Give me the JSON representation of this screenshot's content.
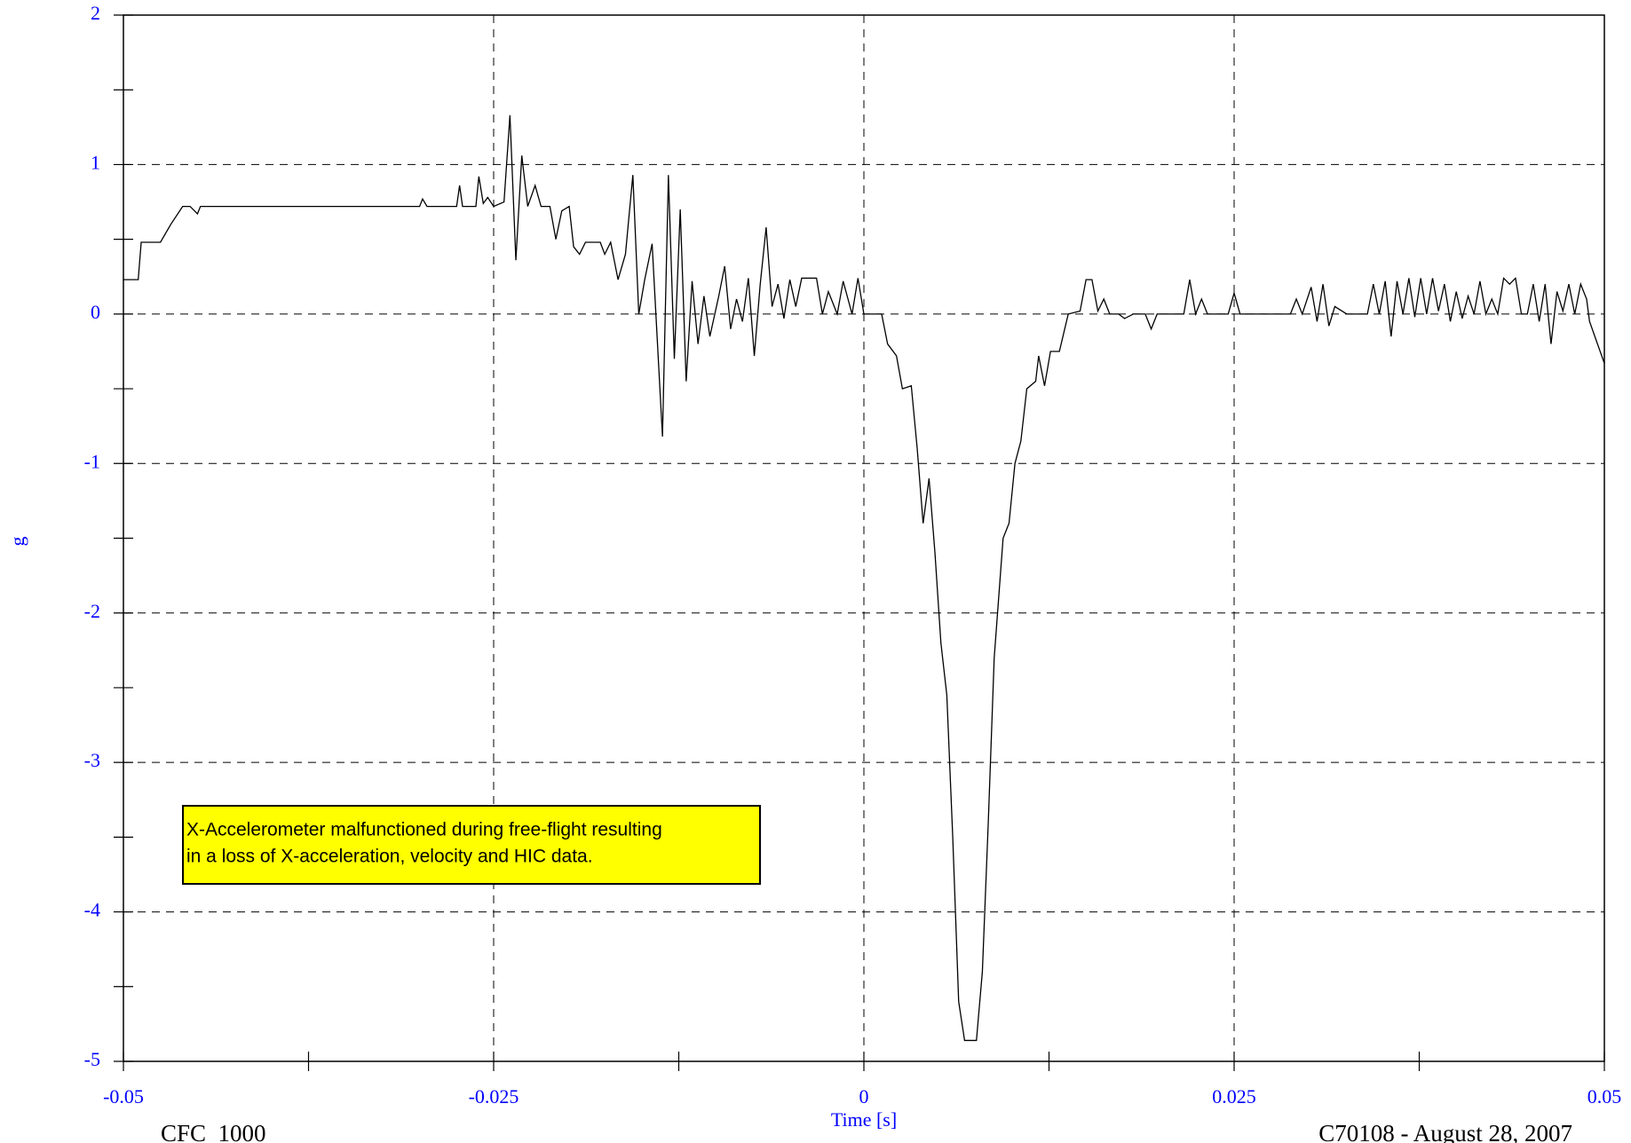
{
  "chart_data": {
    "type": "line",
    "y_label": "g",
    "x_label": "Time [s]",
    "footer_left": "CFC_1000",
    "footer_right": "C70108 - August 28, 2007",
    "annotation": [
      "X-Accelerometer malfunctioned during free-flight resulting",
      "in a loss of X-acceleration, velocity and HIC data."
    ],
    "xlim": [
      -0.05,
      0.05
    ],
    "ylim": [
      -5,
      2
    ],
    "xticks": [
      -0.05,
      -0.025,
      0,
      0.025,
      0.05
    ],
    "yticks": [
      2,
      1,
      0,
      -1,
      -2,
      -3,
      -4,
      -5
    ],
    "xticks_minor": [
      -0.0375,
      -0.0125,
      0.0125,
      0.0375
    ],
    "yticks_minor": [
      1.5,
      0.5,
      -0.5,
      -1.5,
      -2.5,
      -3.5,
      -4.5
    ],
    "grid": true,
    "series": [
      {
        "color": "#000000",
        "x": [
          -0.05,
          -0.049,
          -0.0488,
          -0.0475,
          -0.0468,
          -0.046,
          -0.0455,
          -0.045,
          -0.0448,
          -0.03,
          -0.0298,
          -0.0295,
          -0.0275,
          -0.0273,
          -0.0271,
          -0.0262,
          -0.026,
          -0.0257,
          -0.0254,
          -0.025,
          -0.0243,
          -0.0239,
          -0.0235,
          -0.0231,
          -0.0227,
          -0.0222,
          -0.0218,
          -0.0212,
          -0.0208,
          -0.0204,
          -0.0199,
          -0.0196,
          -0.0192,
          -0.0188,
          -0.0178,
          -0.0175,
          -0.0171,
          -0.0166,
          -0.0161,
          -0.0156,
          -0.0152,
          -0.0148,
          -0.0143,
          -0.0136,
          -0.0132,
          -0.0128,
          -0.0124,
          -0.012,
          -0.0116,
          -0.0112,
          -0.0108,
          -0.0104,
          -0.0098,
          -0.0094,
          -0.009,
          -0.0086,
          -0.0082,
          -0.0078,
          -0.0074,
          -0.007,
          -0.0066,
          -0.0062,
          -0.0058,
          -0.0054,
          -0.005,
          -0.0046,
          -0.0042,
          -0.0032,
          -0.0028,
          -0.0024,
          -0.0018,
          -0.0014,
          -0.0008,
          -0.0004,
          0,
          0.0012,
          0.0016,
          0.0022,
          0.0026,
          0.0032,
          0.0036,
          0.004,
          0.0044,
          0.0048,
          0.0052,
          0.0056,
          0.006,
          0.0064,
          0.0068,
          0.0076,
          0.008,
          0.0084,
          0.0088,
          0.0094,
          0.0098,
          0.0102,
          0.0106,
          0.011,
          0.0116,
          0.0118,
          0.0122,
          0.0126,
          0.0132,
          0.0138,
          0.0146,
          0.015,
          0.0154,
          0.0158,
          0.0162,
          0.0166,
          0.0172,
          0.0176,
          0.0182,
          0.019,
          0.0194,
          0.0198,
          0.0216,
          0.022,
          0.0224,
          0.0228,
          0.0232,
          0.0246,
          0.025,
          0.0254,
          0.0288,
          0.0292,
          0.0296,
          0.0302,
          0.0306,
          0.031,
          0.0314,
          0.0318,
          0.0326,
          0.034,
          0.0344,
          0.0348,
          0.0352,
          0.0356,
          0.036,
          0.0364,
          0.0368,
          0.0372,
          0.0376,
          0.038,
          0.0384,
          0.0388,
          0.0392,
          0.0396,
          0.04,
          0.0404,
          0.0408,
          0.0412,
          0.0416,
          0.042,
          0.0424,
          0.0428,
          0.0432,
          0.0436,
          0.044,
          0.0444,
          0.0448,
          0.0452,
          0.0456,
          0.046,
          0.0464,
          0.0468,
          0.0472,
          0.0476,
          0.048,
          0.0484,
          0.0488,
          0.049,
          0.05
        ],
        "values": [
          0.23,
          0.23,
          0.48,
          0.48,
          0.6,
          0.72,
          0.72,
          0.67,
          0.72,
          0.72,
          0.77,
          0.72,
          0.72,
          0.86,
          0.72,
          0.72,
          0.92,
          0.74,
          0.78,
          0.72,
          0.75,
          1.33,
          0.36,
          1.06,
          0.72,
          0.86,
          0.72,
          0.72,
          0.5,
          0.69,
          0.72,
          0.45,
          0.4,
          0.48,
          0.48,
          0.4,
          0.48,
          0.23,
          0.4,
          0.93,
          0.0,
          0.23,
          0.47,
          -0.82,
          0.93,
          -0.3,
          0.7,
          -0.45,
          0.22,
          -0.2,
          0.12,
          -0.15,
          0.12,
          0.32,
          -0.1,
          0.1,
          -0.05,
          0.24,
          -0.28,
          0.2,
          0.58,
          0.05,
          0.2,
          -0.03,
          0.23,
          0.05,
          0.24,
          0.24,
          0.0,
          0.15,
          0.0,
          0.22,
          0.0,
          0.24,
          0,
          0,
          -0.2,
          -0.28,
          -0.5,
          -0.48,
          -0.9,
          -1.4,
          -1.1,
          -1.6,
          -2.2,
          -2.55,
          -3.5,
          -4.6,
          -4.86,
          -4.86,
          -4.4,
          -3.4,
          -2.3,
          -1.5,
          -1.4,
          -1.0,
          -0.85,
          -0.5,
          -0.45,
          -0.28,
          -0.48,
          -0.25,
          -0.25,
          0,
          0.02,
          0.23,
          0.23,
          0.02,
          0.1,
          0,
          0,
          -0.03,
          0,
          0,
          -0.1,
          0,
          0,
          0.23,
          0,
          0.1,
          0,
          0,
          0.14,
          0,
          0,
          0.1,
          0.0,
          0.18,
          -0.05,
          0.2,
          -0.08,
          0.05,
          0,
          0,
          0.2,
          0,
          0.22,
          -0.15,
          0.22,
          0,
          0.24,
          -0.02,
          0.24,
          0.0,
          0.24,
          0.02,
          0.2,
          -0.05,
          0.15,
          -0.03,
          0.12,
          0,
          0.22,
          0,
          0.1,
          0,
          0.24,
          0.2,
          0.24,
          0,
          0,
          0.2,
          -0.05,
          0.2,
          -0.2,
          0.15,
          0.02,
          0.2,
          0.0,
          0.2,
          0.1,
          -0.05,
          -0.33
        ]
      }
    ]
  }
}
